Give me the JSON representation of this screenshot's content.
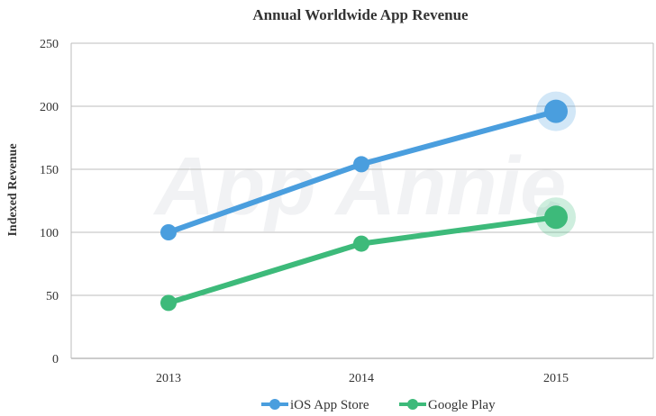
{
  "chart_data": {
    "type": "line",
    "title": "Annual Worldwide App Revenue",
    "xlabel": "",
    "ylabel": "Indexed Revenue",
    "categories": [
      "2013",
      "2014",
      "2015"
    ],
    "ylim": [
      0,
      250
    ],
    "yticks": [
      0,
      50,
      100,
      150,
      200,
      250
    ],
    "grid": true,
    "legend_position": "bottom",
    "watermark": "App Annie",
    "series": [
      {
        "name": "iOS App Store",
        "values": [
          100,
          154,
          196
        ],
        "color": "#4a9ede"
      },
      {
        "name": "Google Play",
        "values": [
          44,
          91,
          112
        ],
        "color": "#3dba7a"
      }
    ]
  }
}
